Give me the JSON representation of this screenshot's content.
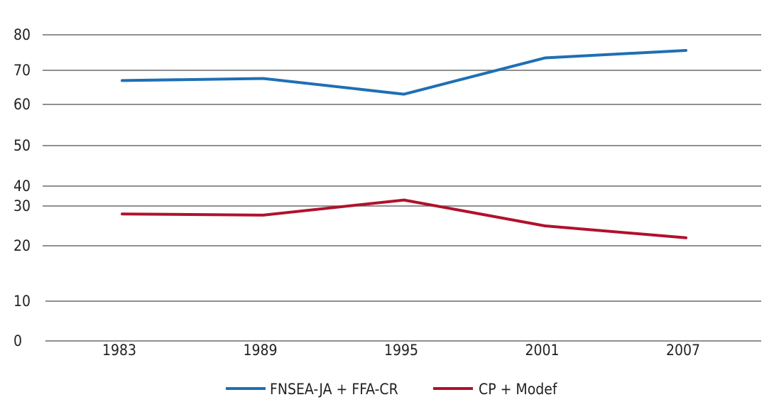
{
  "chart_data": {
    "type": "line",
    "title": "",
    "xlabel": "",
    "ylabel": "",
    "categories": [
      "1983",
      "1989",
      "1995",
      "2001",
      "2007"
    ],
    "yticks": [
      0,
      10,
      20,
      30,
      40,
      50,
      60,
      70,
      80
    ],
    "ylim": [
      0,
      80
    ],
    "grid": true,
    "legend_position": "bottom-center",
    "series": [
      {
        "name": "FNSEA-JA + FFA-CR",
        "color": "#1f6fb4",
        "values": [
          67,
          67.6,
          63,
          73.5,
          75.6
        ]
      },
      {
        "name": "CP + Modef",
        "color": "#b0112d",
        "values": [
          28,
          27.7,
          33,
          25,
          22
        ]
      }
    ]
  }
}
